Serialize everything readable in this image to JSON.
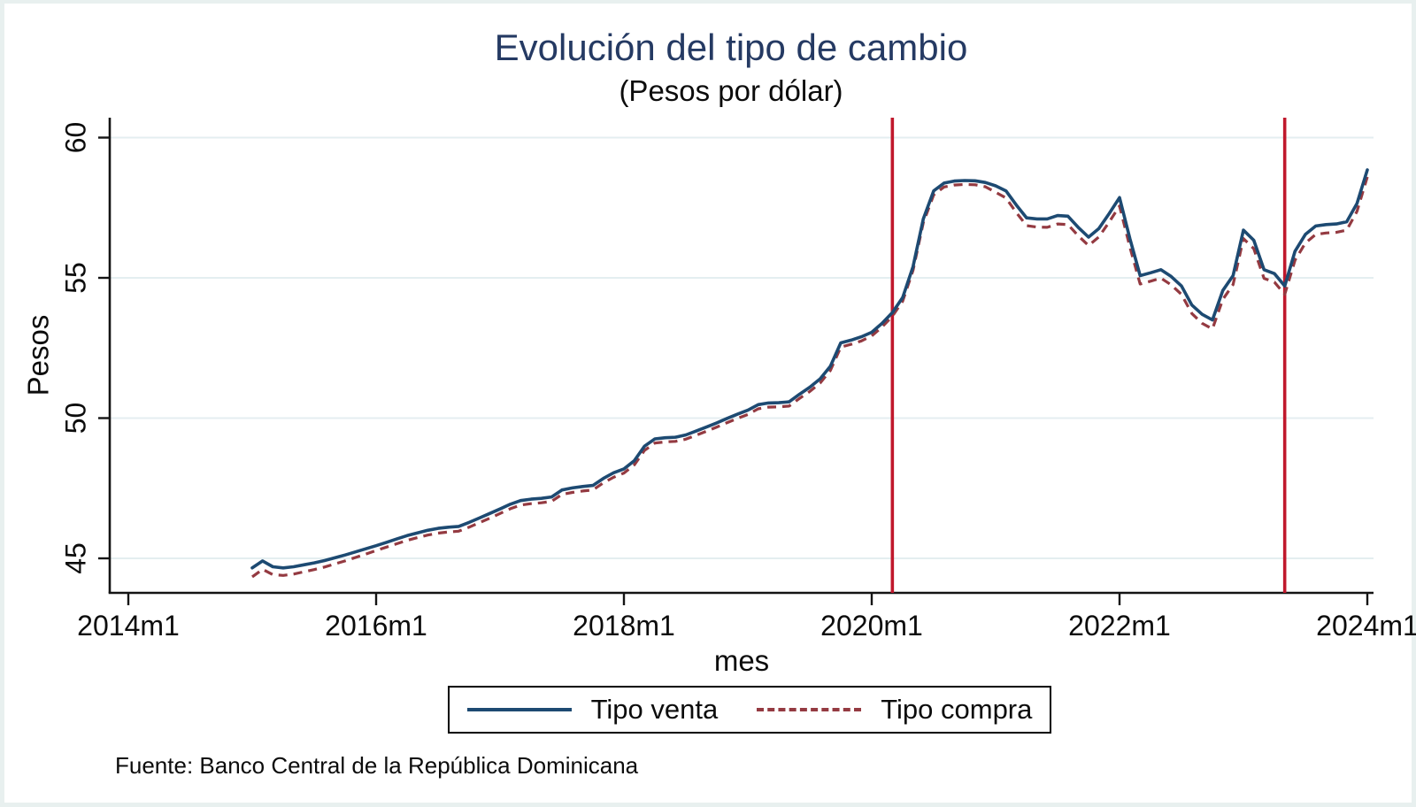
{
  "window": {
    "frame_color": "#e8f0ef",
    "canvas_color": "#ffffff"
  },
  "header": {
    "title": "Evolución del tipo de cambio",
    "subtitle": "(Pesos por dólar)",
    "title_color": "#253a63"
  },
  "source_note": "Fuente: Banco Central de la República Dominicana",
  "legend": {
    "position": "bottom-center",
    "items": [
      {
        "label": "Tipo venta",
        "line_style": "solid",
        "color": "#1d4a72"
      },
      {
        "label": "Tipo compra",
        "line_style": "dashed",
        "color": "#943a41"
      }
    ]
  },
  "chart_data": {
    "type": "line",
    "title": "Evolución del tipo de cambio",
    "subtitle": "(Pesos por dólar)",
    "xlabel": "mes",
    "ylabel": "Pesos",
    "grid": true,
    "gridline_color": "#e4eef0",
    "axis_color": "#141414",
    "legend_position": "bottom",
    "ylim": [
      43.8,
      60.7
    ],
    "y_ticks": [
      45,
      50,
      55,
      60
    ],
    "x_tick_labels": [
      "2014m1",
      "2016m1",
      "2018m1",
      "2020m1",
      "2022m1",
      "2024m1"
    ],
    "x_start": "2015m1",
    "x_end": "2024m1",
    "frequency": "monthly",
    "vlines": {
      "color": "#c0182c",
      "positions": [
        "2020m3",
        "2023m5"
      ]
    },
    "series": [
      {
        "name": "Tipo venta",
        "color": "#1d4a72",
        "style": "solid",
        "values": [
          44.66,
          44.91,
          44.7,
          44.66,
          44.7,
          44.77,
          44.84,
          44.92,
          45.02,
          45.12,
          45.23,
          45.34,
          45.45,
          45.57,
          45.69,
          45.81,
          45.91,
          46.0,
          46.07,
          46.11,
          46.14,
          46.28,
          46.44,
          46.6,
          46.76,
          46.93,
          47.06,
          47.11,
          47.14,
          47.19,
          47.44,
          47.51,
          47.56,
          47.6,
          47.85,
          48.05,
          48.19,
          48.48,
          49.0,
          49.26,
          49.3,
          49.32,
          49.4,
          49.54,
          49.68,
          49.83,
          49.99,
          50.14,
          50.28,
          50.48,
          50.54,
          50.55,
          50.58,
          50.85,
          51.1,
          51.4,
          51.85,
          52.68,
          52.78,
          52.9,
          53.06,
          53.38,
          53.76,
          54.3,
          55.4,
          57.1,
          58.1,
          58.38,
          58.45,
          58.47,
          58.46,
          58.4,
          58.28,
          58.1,
          57.6,
          57.14,
          57.1,
          57.1,
          57.22,
          57.2,
          56.8,
          56.45,
          56.76,
          57.29,
          57.86,
          56.4,
          55.08,
          55.18,
          55.29,
          55.05,
          54.71,
          54.03,
          53.7,
          53.5,
          54.55,
          55.08,
          56.7,
          56.34,
          55.29,
          55.15,
          54.71,
          55.95,
          56.55,
          56.85,
          56.9,
          56.92,
          57.0,
          57.65,
          58.85
        ]
      },
      {
        "name": "Tipo compra",
        "color": "#943a41",
        "style": "dashed",
        "values": [
          44.34,
          44.61,
          44.42,
          44.39,
          44.44,
          44.52,
          44.6,
          44.69,
          44.8,
          44.91,
          45.03,
          45.15,
          45.28,
          45.4,
          45.52,
          45.64,
          45.74,
          45.83,
          45.9,
          45.94,
          45.97,
          46.11,
          46.27,
          46.43,
          46.6,
          46.77,
          46.9,
          46.95,
          46.98,
          47.03,
          47.28,
          47.35,
          47.4,
          47.44,
          47.69,
          47.89,
          48.04,
          48.33,
          48.85,
          49.11,
          49.15,
          49.17,
          49.25,
          49.39,
          49.53,
          49.68,
          49.84,
          49.99,
          50.13,
          50.33,
          50.39,
          50.4,
          50.43,
          50.7,
          50.95,
          51.25,
          51.7,
          52.53,
          52.63,
          52.75,
          52.93,
          53.25,
          53.63,
          54.17,
          55.27,
          56.97,
          57.96,
          58.24,
          58.31,
          58.33,
          58.32,
          58.25,
          58.05,
          57.85,
          57.33,
          56.86,
          56.81,
          56.8,
          56.92,
          56.9,
          56.5,
          56.15,
          56.46,
          56.99,
          57.56,
          56.1,
          54.78,
          54.88,
          54.99,
          54.75,
          54.41,
          53.73,
          53.38,
          53.18,
          54.23,
          54.76,
          56.4,
          56.04,
          54.98,
          54.85,
          54.41,
          55.63,
          56.24,
          56.55,
          56.6,
          56.62,
          56.7,
          57.37,
          58.6
        ]
      }
    ]
  }
}
